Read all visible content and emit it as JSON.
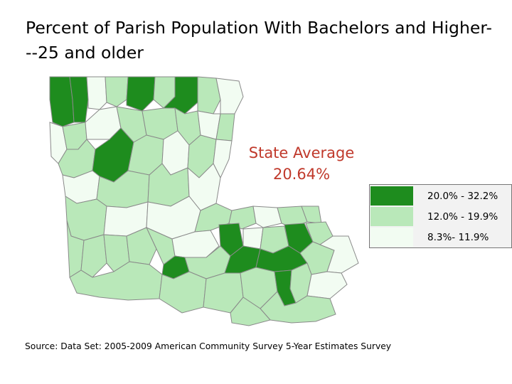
{
  "title": "Percent of Parish Population With Bachelors and Higher---25 and older",
  "state_average": {
    "label": "State Average",
    "value": "20.64%"
  },
  "legend": [
    {
      "label": "20.0% - 32.2%",
      "color": "#1e8c1e"
    },
    {
      "label": "12.0% - 19.9%",
      "color": "#b9e8b9"
    },
    {
      "label": "8.3%- 11.9%",
      "color": "#f2fcf2"
    }
  ],
  "source": "Source: Data Set: 2005-2009 American Community Survey 5-Year Estimates Survey",
  "colors": {
    "high": "#1e8c1e",
    "mid": "#b9e8b9",
    "low": "#f2fcf2",
    "parish_border": "#8a8a8a",
    "state_average_text": "#c0392b"
  }
}
